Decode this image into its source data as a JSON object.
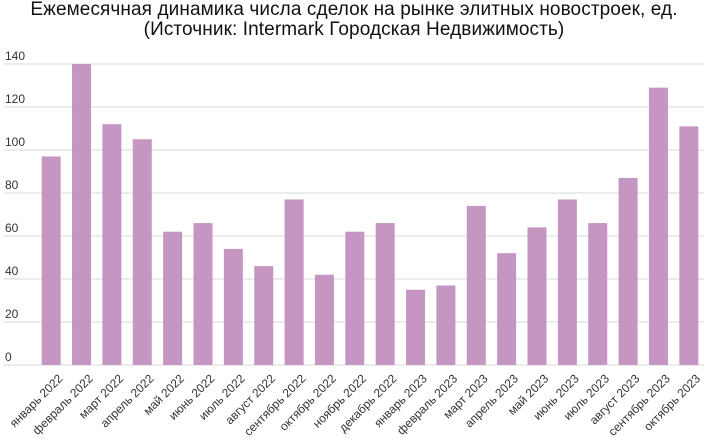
{
  "chart_data": {
    "type": "bar",
    "title": "Ежемесячная динамика числа сделок на рынке элитных новостроек, ед.",
    "subtitle": "(Источник: Intermark Городская Недвижимость)",
    "xlabel": "",
    "ylabel": "",
    "ylim": [
      0,
      140
    ],
    "yticks": [
      0,
      20,
      40,
      60,
      80,
      100,
      120,
      140
    ],
    "grid": true,
    "legend": "none",
    "bar_color": "#c596c2",
    "grid_color": "#d9d9d9",
    "categories": [
      "январь 2022",
      "февраль 2022",
      "март 2022",
      "апрель 2022",
      "май 2022",
      "июнь 2022",
      "июль 2022",
      "август 2022",
      "сентябрь 2022",
      "октябрь 2022",
      "ноябрь 2022",
      "декабрь 2022",
      "январь 2023",
      "февраль 2023",
      "март 2023",
      "апрель 2023",
      "май 2023",
      "июнь 2023",
      "июль 2023",
      "август 2023",
      "сентябрь 2023",
      "октябрь 2023"
    ],
    "values": [
      97,
      140,
      112,
      105,
      62,
      66,
      54,
      46,
      77,
      42,
      62,
      66,
      35,
      37,
      74,
      52,
      64,
      77,
      66,
      87,
      129,
      111
    ]
  }
}
